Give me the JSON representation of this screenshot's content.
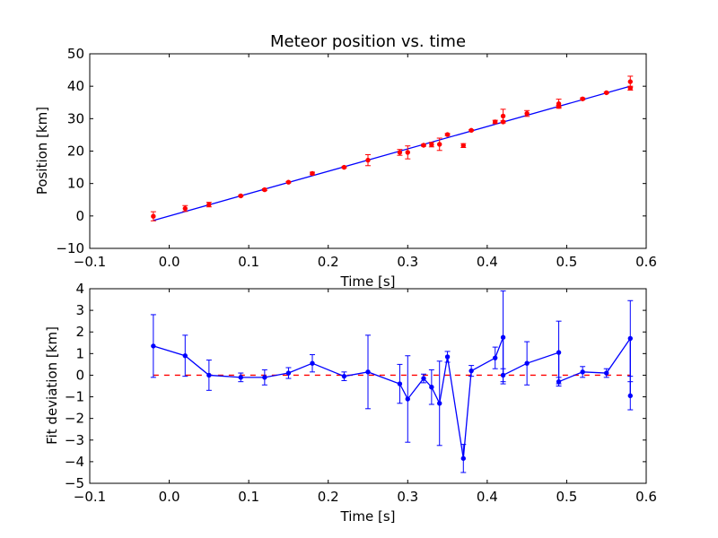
{
  "chart_data": [
    {
      "type": "scatter",
      "title": "Meteor position vs. time",
      "xlabel": "Time [s]",
      "ylabel": "Position [km]",
      "xlim": [
        -0.1,
        0.6
      ],
      "ylim": [
        -10,
        50
      ],
      "xticks": [
        -0.1,
        0.0,
        0.1,
        0.2,
        0.3,
        0.4,
        0.5,
        0.6
      ],
      "yticks": [
        -10,
        0,
        10,
        20,
        30,
        40,
        50
      ],
      "xtick_labels": [
        "−0.1",
        "0.0",
        "0.1",
        "0.2",
        "0.3",
        "0.4",
        "0.5",
        "0.6"
      ],
      "ytick_labels": [
        "−10",
        "0",
        "10",
        "20",
        "30",
        "40",
        "50"
      ],
      "fit_line": {
        "x": [
          -0.02,
          0.58
        ],
        "y": [
          -1.4,
          40.0
        ],
        "color": "#0000ff"
      },
      "points": {
        "color": "#ff0000",
        "x": [
          -0.02,
          0.02,
          0.05,
          0.09,
          0.12,
          0.15,
          0.18,
          0.22,
          0.25,
          0.29,
          0.3,
          0.32,
          0.33,
          0.34,
          0.35,
          0.37,
          0.38,
          0.41,
          0.42,
          0.42,
          0.45,
          0.49,
          0.49,
          0.52,
          0.55,
          0.58,
          0.58
        ],
        "y": [
          -0.1,
          2.3,
          3.5,
          6.2,
          8.1,
          10.4,
          13.1,
          15.0,
          17.2,
          19.6,
          19.6,
          21.8,
          22.0,
          22.1,
          25.1,
          21.7,
          26.4,
          29.0,
          29.0,
          30.8,
          31.6,
          33.8,
          34.6,
          36.1,
          38.0,
          41.4,
          39.4
        ],
        "err": [
          1.4,
          0.9,
          0.7,
          0.2,
          0.3,
          0.2,
          0.4,
          0.2,
          1.7,
          0.9,
          2.0,
          0.3,
          0.7,
          1.9,
          0.3,
          0.6,
          0.2,
          0.5,
          0.3,
          2.1,
          0.9,
          0.3,
          1.4,
          0.3,
          0.2,
          1.7,
          0.6
        ]
      }
    },
    {
      "type": "line",
      "xlabel": "Time [s]",
      "ylabel": "Fit deviation [km]",
      "xlim": [
        -0.1,
        0.6
      ],
      "ylim": [
        -5,
        4
      ],
      "xticks": [
        -0.1,
        0.0,
        0.1,
        0.2,
        0.3,
        0.4,
        0.5,
        0.6
      ],
      "yticks": [
        -5,
        -4,
        -3,
        -2,
        -1,
        0,
        1,
        2,
        3,
        4
      ],
      "xtick_labels": [
        "−0.1",
        "0.0",
        "0.1",
        "0.2",
        "0.3",
        "0.4",
        "0.5",
        "0.6"
      ],
      "ytick_labels": [
        "−5",
        "−4",
        "−3",
        "−2",
        "−1",
        "0",
        "1",
        "2",
        "3",
        "4"
      ],
      "zero_line": {
        "y": 0,
        "x": [
          -0.02,
          0.58
        ],
        "color": "#ff0000",
        "style": "dashed"
      },
      "series": {
        "color": "#0000ff",
        "x": [
          -0.02,
          0.02,
          0.05,
          0.09,
          0.12,
          0.15,
          0.18,
          0.22,
          0.25,
          0.29,
          0.3,
          0.32,
          0.33,
          0.34,
          0.35,
          0.37,
          0.38,
          0.41,
          0.42,
          0.42,
          0.45,
          0.49,
          0.49,
          0.52,
          0.55,
          0.58,
          0.58
        ],
        "y": [
          1.35,
          0.9,
          0.0,
          -0.1,
          -0.1,
          0.1,
          0.55,
          -0.05,
          0.15,
          -0.4,
          -1.1,
          -0.15,
          -0.55,
          -1.3,
          0.85,
          -3.85,
          0.2,
          0.8,
          1.75,
          0.0,
          0.55,
          1.05,
          -0.3,
          0.15,
          0.1,
          1.7,
          -0.95
        ],
        "err": [
          1.45,
          0.95,
          0.7,
          0.2,
          0.35,
          0.25,
          0.4,
          0.2,
          1.7,
          0.9,
          2.0,
          0.2,
          0.8,
          1.95,
          0.25,
          0.65,
          0.25,
          0.5,
          2.15,
          0.3,
          1.0,
          1.45,
          0.2,
          0.25,
          0.2,
          1.75,
          0.65
        ]
      }
    }
  ]
}
